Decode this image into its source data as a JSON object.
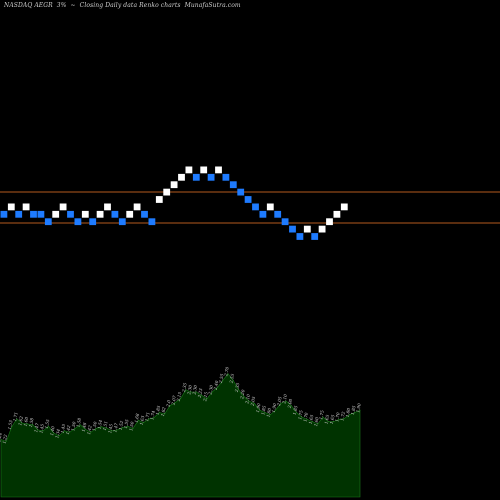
{
  "header": {
    "exchange_symbol": "NASDAQ AEGR",
    "change": "3%",
    "tilde": "~",
    "description": "Closing Daily data Renko charts",
    "source": "MunafaSutra.com"
  },
  "colors": {
    "background": "#000000",
    "up_brick": "#ffffff",
    "down_brick": "#1e7bff",
    "reference_line": "#b45a1e",
    "volume_fill": "#003300",
    "volume_line": "#1a7a1a",
    "label": "#dcdcdc"
  },
  "chart_data": [
    {
      "type": "renko",
      "title": "NASDAQ AEGR 3%~ Closing Daily data Renko charts",
      "brick_levels": [
        1,
        2,
        1,
        2,
        1,
        1,
        0,
        1,
        2,
        1,
        0,
        1,
        0,
        1,
        2,
        1,
        0,
        1,
        2,
        1,
        0,
        3,
        4,
        5,
        6,
        7,
        6,
        7,
        6,
        7,
        6,
        5,
        4,
        3,
        2,
        1,
        2,
        1,
        0,
        -1,
        -2,
        -1,
        -2,
        -1,
        0,
        1,
        2
      ],
      "brick_directions": [
        "down",
        "up",
        "down",
        "up",
        "down",
        "down",
        "down",
        "up",
        "up",
        "down",
        "down",
        "up",
        "down",
        "up",
        "up",
        "down",
        "down",
        "up",
        "up",
        "down",
        "down",
        "up",
        "up",
        "up",
        "up",
        "up",
        "down",
        "up",
        "down",
        "up",
        "down",
        "down",
        "down",
        "down",
        "down",
        "down",
        "up",
        "down",
        "down",
        "down",
        "down",
        "up",
        "down",
        "up",
        "up",
        "up",
        "up"
      ],
      "reference_lines": [
        "upper",
        "lower"
      ],
      "grid": false
    },
    {
      "type": "area",
      "title": "Volume",
      "values": [
        1.26,
        1.22,
        1.53,
        1.71,
        1.62,
        1.6,
        1.58,
        1.47,
        1.45,
        1.55,
        1.4,
        1.34,
        1.45,
        1.42,
        1.5,
        1.58,
        1.48,
        1.42,
        1.5,
        1.54,
        1.51,
        1.45,
        1.47,
        1.52,
        1.55,
        1.5,
        1.68,
        1.63,
        1.71,
        1.74,
        1.85,
        1.82,
        2.0,
        2.07,
        2.15,
        2.35,
        2.3,
        2.3,
        2.23,
        2.15,
        2.3,
        2.4,
        2.55,
        2.7,
        2.55,
        2.35,
        2.2,
        2.1,
        2.05,
        1.9,
        1.85,
        1.8,
        1.9,
        2.05,
        2.1,
        2.0,
        1.85,
        1.75,
        1.7,
        1.65,
        1.6,
        1.75,
        1.65,
        1.65,
        1.7,
        1.72,
        1.8,
        1.85,
        1.9
      ],
      "labels": [
        "1.26",
        "1.22",
        "1.53",
        "1.71",
        "1.62",
        "1.60",
        "1.58",
        "1.47",
        "1.45",
        "1.55",
        "1.40",
        "1.34",
        "1.45",
        "1.42",
        "1.50",
        "1.58",
        "1.48",
        "1.42",
        "1.50",
        "1.54",
        "1.51",
        "1.45",
        "1.47",
        "1.52",
        "1.55",
        "1.50",
        "1.68",
        "1.63",
        "1.71",
        "1.74",
        "1.85",
        "1.82",
        "2.0",
        "2.07",
        "2.15",
        "2.35",
        "2.30",
        "2.30",
        "2.23",
        "2.15",
        "2.30",
        "2.40",
        "2.55",
        "2.70",
        "2.55",
        "2.35",
        "2.20",
        "2.10",
        "2.05",
        "1.90",
        "1.85",
        "1.80",
        "1.90",
        "2.05",
        "2.10",
        "2.00",
        "1.85",
        "1.75",
        "1.70",
        "1.65",
        "1.60",
        "1.75",
        "1.65",
        "1.65",
        "1.70",
        "1.72",
        "1.80",
        "1.85",
        "1.90"
      ],
      "ylim": [
        0,
        3
      ]
    }
  ]
}
